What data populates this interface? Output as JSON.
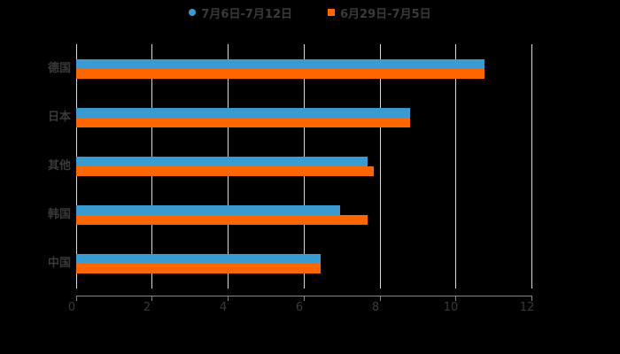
{
  "chart_data": {
    "type": "bar",
    "orientation": "horizontal",
    "title": "",
    "xlabel": "",
    "ylabel": "",
    "categories": [
      "德国",
      "日本",
      "其他",
      "韩国",
      "中国"
    ],
    "series": [
      {
        "name": "7月6日-7月12日",
        "color": "#3a9bd0",
        "marker": "circle",
        "values": [
          10.77,
          8.81,
          7.69,
          6.96,
          6.45
        ]
      },
      {
        "name": "6月29日-7月5日",
        "color": "#ff6600",
        "marker": "square",
        "values": [
          10.77,
          8.81,
          7.85,
          7.69,
          6.45
        ]
      }
    ],
    "xlim": [
      0,
      12
    ],
    "xticks": [
      "0",
      "2",
      "4",
      "6",
      "8",
      "10",
      "12"
    ],
    "grid": true,
    "legend_position": "top"
  },
  "legend": {
    "items": [
      {
        "label": "7月6日-7月12日",
        "color": "#3a9bd0"
      },
      {
        "label": "6月29日-7月5日",
        "color": "#ff6600"
      }
    ]
  },
  "axis": {
    "ticks": [
      "0",
      "2",
      "4",
      "6",
      "8",
      "10",
      "12"
    ]
  },
  "categories": {
    "labels": [
      "德国",
      "日本",
      "其他",
      "韩国",
      "中国"
    ]
  }
}
